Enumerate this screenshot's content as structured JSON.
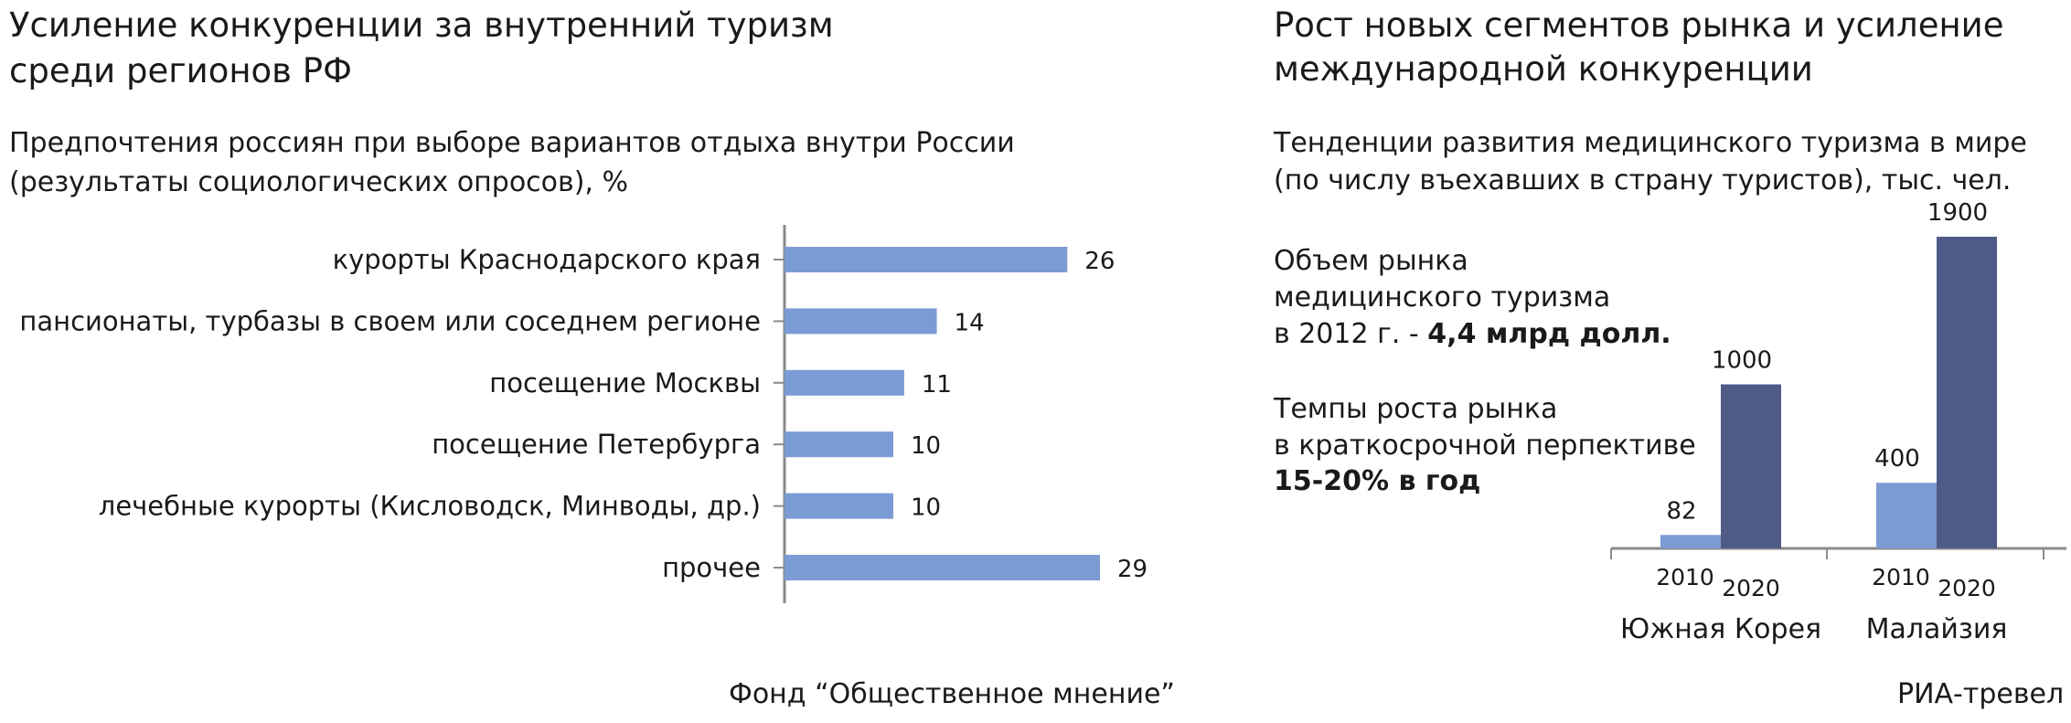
{
  "left": {
    "title_line1": "Усиление конкуренции за внутренний туризм",
    "title_line2": "среди регионов РФ",
    "subtitle_line1": "Предпочтения россиян при выборе вариантов отдыха внутри России",
    "subtitle_line2": "(результаты социологических опросов), %",
    "source": "Фонд “Общественное мнение”"
  },
  "right": {
    "title_line1": "Рост новых сегментов рынка и усиление",
    "title_line2": "международной конкуренции",
    "subtitle_line1": "Тенденции развития медицинского туризма в мире",
    "subtitle_line2": "(по числу въехавших в страну туристов), тыс. чел.",
    "market": {
      "line1": "Объем рынка",
      "line2": "медицинского туризма",
      "line3_prefix": "в 2012 г. - ",
      "line3_value": "4,4 млрд долл."
    },
    "growth": {
      "line1": "Темпы роста рынка",
      "line2": "в краткосрочной перпективе",
      "line3_value": "15-20% в год"
    },
    "source": "РИА-тревел"
  },
  "chart_data": [
    {
      "type": "bar",
      "orientation": "horizontal",
      "categories": [
        "курорты Краснодарского края",
        "пансионаты, турбазы в своем или соседнем регионе",
        "посещение Москвы",
        "посещение Петербурга",
        "лечебные курорты (Кисловодск, Минводы, др.)",
        "прочее"
      ],
      "values": [
        26,
        14,
        11,
        10,
        10,
        29
      ],
      "xlim": [
        0,
        35
      ],
      "color": "#7b9bd4",
      "grid": false
    },
    {
      "type": "bar",
      "groups": [
        "Южная Корея",
        "Малайзия"
      ],
      "categories": [
        "2010",
        "2020"
      ],
      "series": [
        {
          "values": [
            82,
            400
          ],
          "color": "#7b9bd4"
        },
        {
          "values": [
            1000,
            1900
          ],
          "color": "#4f5b87"
        }
      ],
      "ylim": [
        0,
        1900
      ],
      "grid": false
    }
  ]
}
